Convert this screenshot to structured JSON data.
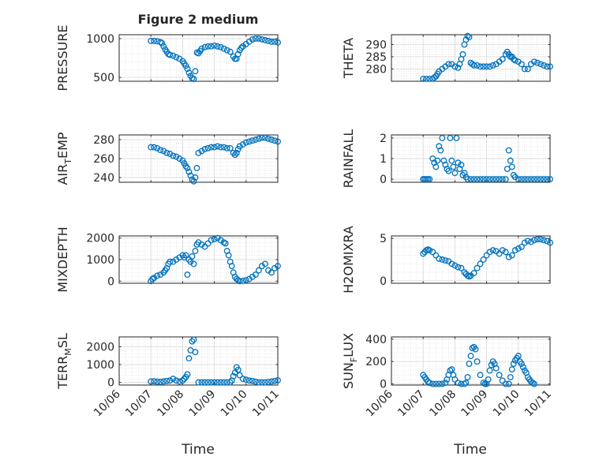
{
  "figure": {
    "title": "Figure 2 medium"
  },
  "chart_data": [
    {
      "id": "pressure",
      "type": "scatter",
      "ylabel": "PRESSURE",
      "ylim": [
        450,
        1050
      ],
      "yticks": [
        500,
        1000
      ],
      "ytick_labels": [
        "500",
        "1000"
      ],
      "show_xticklabels": false,
      "marker_color": "#0072BD",
      "x": [
        7.0,
        7.1,
        7.2,
        7.3,
        7.35,
        7.4,
        7.45,
        7.5,
        7.55,
        7.6,
        7.7,
        7.8,
        7.9,
        8.0,
        8.05,
        8.1,
        8.15,
        8.2,
        8.25,
        8.3,
        8.35,
        8.4,
        8.45,
        8.5,
        8.55,
        8.6,
        8.7,
        8.8,
        8.9,
        9.0,
        9.1,
        9.2,
        9.3,
        9.4,
        9.5,
        9.6,
        9.65,
        9.7,
        9.75,
        9.8,
        9.85,
        9.9,
        10.0,
        10.1,
        10.2,
        10.3,
        10.4,
        10.5,
        10.6,
        10.7,
        10.8,
        10.9,
        11.0
      ],
      "y": [
        970,
        970,
        965,
        955,
        940,
        900,
        860,
        830,
        800,
        790,
        780,
        760,
        740,
        710,
        680,
        650,
        610,
        560,
        520,
        490,
        480,
        580,
        820,
        810,
        840,
        870,
        890,
        900,
        900,
        910,
        900,
        890,
        870,
        850,
        830,
        770,
        740,
        740,
        800,
        850,
        880,
        900,
        930,
        960,
        990,
        1000,
        1000,
        990,
        980,
        970,
        960,
        960,
        950
      ]
    },
    {
      "id": "theta",
      "type": "scatter",
      "ylabel": "THETA",
      "ylim": [
        275,
        294
      ],
      "yticks": [
        280,
        285,
        290
      ],
      "ytick_labels": [
        "280",
        "285",
        "290"
      ],
      "show_xticklabels": false,
      "marker_color": "#0072BD",
      "x": [
        7.0,
        7.1,
        7.2,
        7.3,
        7.35,
        7.4,
        7.45,
        7.5,
        7.6,
        7.7,
        7.8,
        7.9,
        8.0,
        8.1,
        8.15,
        8.2,
        8.25,
        8.3,
        8.35,
        8.4,
        8.45,
        8.5,
        8.55,
        8.6,
        8.7,
        8.8,
        8.9,
        9.0,
        9.1,
        9.2,
        9.3,
        9.4,
        9.5,
        9.6,
        9.65,
        9.7,
        9.75,
        9.8,
        9.85,
        9.9,
        10.0,
        10.1,
        10.2,
        10.3,
        10.4,
        10.5,
        10.6,
        10.7,
        10.8,
        10.9,
        11.0
      ],
      "y": [
        276,
        276,
        276,
        276,
        276.5,
        277,
        278,
        279,
        280,
        281,
        282,
        282,
        281,
        280.5,
        282,
        284,
        286,
        290,
        292,
        293.5,
        293,
        282.5,
        282,
        281.5,
        281.5,
        281,
        281,
        281,
        281,
        281.5,
        282,
        283,
        284,
        286,
        287,
        286,
        285,
        285,
        284,
        283.5,
        283,
        282,
        280,
        280,
        282,
        283,
        282.5,
        282,
        281.5,
        281,
        281
      ]
    },
    {
      "id": "air_temp",
      "type": "scatter",
      "ylabel": "AIR_TEMP",
      "ylabel_main": "AIR",
      "ylabel_sub": "T",
      "ylabel_rest": "EMP",
      "ylim": [
        235,
        285
      ],
      "yticks": [
        240,
        260,
        280
      ],
      "ytick_labels": [
        "240",
        "260",
        "280"
      ],
      "show_xticklabels": false,
      "marker_color": "#0072BD",
      "x": [
        7.0,
        7.1,
        7.2,
        7.3,
        7.4,
        7.5,
        7.6,
        7.7,
        7.8,
        7.9,
        8.0,
        8.05,
        8.1,
        8.15,
        8.2,
        8.25,
        8.3,
        8.35,
        8.4,
        8.45,
        8.5,
        8.6,
        8.7,
        8.8,
        8.9,
        9.0,
        9.1,
        9.2,
        9.3,
        9.4,
        9.5,
        9.6,
        9.65,
        9.7,
        9.75,
        9.8,
        9.9,
        10.0,
        10.1,
        10.2,
        10.3,
        10.4,
        10.5,
        10.6,
        10.7,
        10.8,
        10.9,
        11.0
      ],
      "y": [
        272,
        272,
        271,
        269,
        268,
        266,
        265,
        263,
        262,
        260,
        258,
        255,
        252,
        250,
        246,
        242,
        238,
        236,
        240,
        250,
        266,
        268,
        270,
        271,
        272,
        272,
        273,
        272,
        272,
        271,
        271,
        266,
        264,
        266,
        270,
        273,
        275,
        277,
        278,
        279,
        280,
        281,
        282,
        282,
        281,
        280,
        279,
        278
      ]
    },
    {
      "id": "rainfall",
      "type": "scatter",
      "ylabel": "RAINFALL",
      "ylim": [
        -0.15,
        2.15
      ],
      "yticks": [
        0,
        1,
        2
      ],
      "ytick_labels": [
        "0",
        "1",
        "2"
      ],
      "show_xticklabels": false,
      "marker_color": "#0072BD",
      "x": [
        7.0,
        7.05,
        7.1,
        7.15,
        7.2,
        7.3,
        7.35,
        7.4,
        7.45,
        7.5,
        7.55,
        7.6,
        7.65,
        7.7,
        7.75,
        7.8,
        7.85,
        7.9,
        7.95,
        8.0,
        8.05,
        8.1,
        8.15,
        8.2,
        8.25,
        8.3,
        8.35,
        8.4,
        8.5,
        8.6,
        8.7,
        8.8,
        8.9,
        9.0,
        9.1,
        9.2,
        9.3,
        9.4,
        9.5,
        9.6,
        9.65,
        9.7,
        9.75,
        9.8,
        9.85,
        9.9,
        10.0,
        10.1,
        10.2,
        10.3,
        10.4,
        10.5,
        10.6,
        10.7,
        10.8,
        10.9,
        11.0
      ],
      "y": [
        0,
        0,
        0,
        0,
        0,
        1.0,
        0.8,
        0.6,
        0.9,
        1.6,
        1.4,
        2.0,
        0.9,
        0.7,
        0.5,
        0.4,
        2.0,
        0.9,
        0.6,
        0.3,
        2.0,
        0.8,
        0.5,
        0.7,
        0.2,
        0.3,
        0.1,
        0,
        0,
        0,
        0,
        0,
        0,
        0,
        0,
        0,
        0,
        0,
        0,
        0,
        0.5,
        1.4,
        0.9,
        0.6,
        0.2,
        0.1,
        0,
        0,
        0,
        0,
        0,
        0,
        0,
        0,
        0,
        0,
        0
      ]
    },
    {
      "id": "mixdepth",
      "type": "scatter",
      "ylabel": "MIXDEPTH",
      "ylim": [
        -100,
        2100
      ],
      "yticks": [
        0,
        1000,
        2000
      ],
      "ytick_labels": [
        "0",
        "1000",
        "2000"
      ],
      "show_xticklabels": false,
      "marker_color": "#0072BD",
      "x": [
        7.0,
        7.05,
        7.1,
        7.2,
        7.3,
        7.4,
        7.45,
        7.5,
        7.55,
        7.6,
        7.7,
        7.8,
        7.9,
        8.0,
        8.05,
        8.1,
        8.15,
        8.2,
        8.25,
        8.3,
        8.35,
        8.4,
        8.45,
        8.5,
        8.6,
        8.7,
        8.8,
        8.9,
        9.0,
        9.1,
        9.2,
        9.3,
        9.35,
        9.4,
        9.45,
        9.5,
        9.55,
        9.6,
        9.65,
        9.7,
        9.75,
        9.8,
        9.9,
        10.0,
        10.1,
        10.2,
        10.3,
        10.4,
        10.5,
        10.6,
        10.7,
        10.8,
        10.9,
        11.0
      ],
      "y": [
        0,
        100,
        150,
        250,
        300,
        400,
        500,
        600,
        800,
        900,
        900,
        1000,
        1100,
        1200,
        1100,
        1200,
        300,
        1000,
        900,
        1150,
        800,
        1400,
        1700,
        1800,
        1700,
        1600,
        1750,
        1900,
        1950,
        2000,
        1900,
        1800,
        1750,
        1400,
        1200,
        900,
        700,
        400,
        200,
        100,
        50,
        0,
        10,
        40,
        100,
        200,
        300,
        500,
        700,
        800,
        500,
        400,
        600,
        700
      ]
    },
    {
      "id": "h2omixra",
      "type": "scatter",
      "ylabel": "H2OMIXRA",
      "ylim": [
        -0.3,
        5.3
      ],
      "yticks": [
        0,
        5
      ],
      "ytick_labels": [
        "0",
        "5"
      ],
      "show_xticklabels": false,
      "marker_color": "#0072BD",
      "x": [
        7.0,
        7.05,
        7.1,
        7.15,
        7.2,
        7.3,
        7.4,
        7.5,
        7.6,
        7.7,
        7.8,
        7.9,
        8.0,
        8.1,
        8.2,
        8.3,
        8.35,
        8.4,
        8.45,
        8.5,
        8.6,
        8.7,
        8.8,
        8.9,
        9.0,
        9.1,
        9.2,
        9.3,
        9.4,
        9.5,
        9.6,
        9.7,
        9.8,
        9.9,
        10.0,
        10.1,
        10.2,
        10.3,
        10.4,
        10.5,
        10.6,
        10.7,
        10.8,
        10.9,
        11.0
      ],
      "y": [
        3.2,
        3.4,
        3.6,
        3.7,
        3.6,
        3.4,
        3.0,
        2.6,
        2.5,
        2.4,
        2.3,
        2.0,
        1.8,
        1.6,
        1.5,
        1.0,
        0.8,
        0.6,
        0.5,
        0.6,
        0.9,
        1.5,
        2.0,
        2.5,
        3.0,
        3.4,
        3.6,
        3.5,
        3.2,
        3.6,
        3.4,
        2.8,
        3.0,
        3.6,
        3.8,
        4.0,
        4.5,
        4.7,
        4.6,
        4.8,
        4.9,
        4.9,
        4.8,
        4.7,
        4.5
      ]
    },
    {
      "id": "terr_msl",
      "type": "scatter",
      "ylabel": "TERR_MSL",
      "ylabel_main": "TERR",
      "ylabel_sub": "M",
      "ylabel_rest": "SL",
      "ylim": [
        -150,
        2550
      ],
      "yticks": [
        0,
        1000,
        2000
      ],
      "ytick_labels": [
        "0",
        "1000",
        "2000"
      ],
      "show_xticklabels": true,
      "marker_color": "#0072BD",
      "x": [
        7.0,
        7.1,
        7.2,
        7.3,
        7.4,
        7.5,
        7.6,
        7.7,
        7.8,
        7.9,
        8.0,
        8.05,
        8.1,
        8.15,
        8.2,
        8.25,
        8.3,
        8.35,
        8.4,
        8.5,
        8.6,
        8.7,
        8.8,
        8.9,
        9.0,
        9.1,
        9.2,
        9.3,
        9.4,
        9.5,
        9.55,
        9.6,
        9.65,
        9.7,
        9.75,
        9.8,
        9.9,
        10.0,
        10.1,
        10.2,
        10.3,
        10.4,
        10.5,
        10.6,
        10.7,
        10.8,
        10.9,
        11.0
      ],
      "y": [
        50,
        60,
        40,
        30,
        50,
        80,
        100,
        200,
        100,
        50,
        100,
        200,
        300,
        450,
        1350,
        1800,
        2300,
        2400,
        1700,
        0,
        0,
        0,
        0,
        0,
        0,
        0,
        0,
        0,
        0,
        0,
        100,
        350,
        550,
        850,
        700,
        400,
        200,
        150,
        100,
        80,
        40,
        0,
        0,
        0,
        20,
        50,
        80,
        120
      ]
    },
    {
      "id": "sun_flux",
      "type": "scatter",
      "ylabel": "SUN_FLUX",
      "ylabel_main": "SUN",
      "ylabel_sub": "F",
      "ylabel_rest": "LUX",
      "ylim": [
        -10,
        420
      ],
      "yticks": [
        0,
        200,
        400
      ],
      "ytick_labels": [
        "0",
        "200",
        "400"
      ],
      "show_xticklabels": true,
      "marker_color": "#0072BD",
      "x": [
        7.0,
        7.05,
        7.1,
        7.15,
        7.2,
        7.3,
        7.4,
        7.5,
        7.6,
        7.7,
        7.75,
        7.8,
        7.85,
        7.9,
        7.95,
        8.0,
        8.1,
        8.2,
        8.3,
        8.35,
        8.4,
        8.45,
        8.5,
        8.55,
        8.6,
        8.65,
        8.7,
        8.8,
        8.9,
        8.95,
        9.0,
        9.05,
        9.1,
        9.15,
        9.2,
        9.25,
        9.3,
        9.4,
        9.5,
        9.6,
        9.7,
        9.75,
        9.8,
        9.85,
        9.9,
        9.95,
        10.0,
        10.05,
        10.1,
        10.15,
        10.2,
        10.25,
        10.3,
        10.35,
        10.4,
        10.45,
        10.5
      ],
      "y": [
        80,
        60,
        40,
        20,
        10,
        0,
        0,
        0,
        0,
        10,
        40,
        80,
        120,
        130,
        80,
        40,
        10,
        0,
        0,
        10,
        60,
        180,
        250,
        320,
        330,
        310,
        200,
        80,
        10,
        0,
        0,
        40,
        120,
        170,
        200,
        180,
        140,
        80,
        30,
        0,
        0,
        60,
        130,
        180,
        210,
        230,
        250,
        200,
        180,
        150,
        120,
        100,
        60,
        40,
        20,
        10,
        0
      ]
    }
  ],
  "x_axis": {
    "label": "Time",
    "range": [
      6,
      11
    ],
    "ticks": [
      6,
      7,
      8,
      9,
      10,
      11
    ],
    "tick_labels": [
      "10/06",
      "10/07",
      "10/08",
      "10/09",
      "10/10",
      "10/11"
    ]
  }
}
